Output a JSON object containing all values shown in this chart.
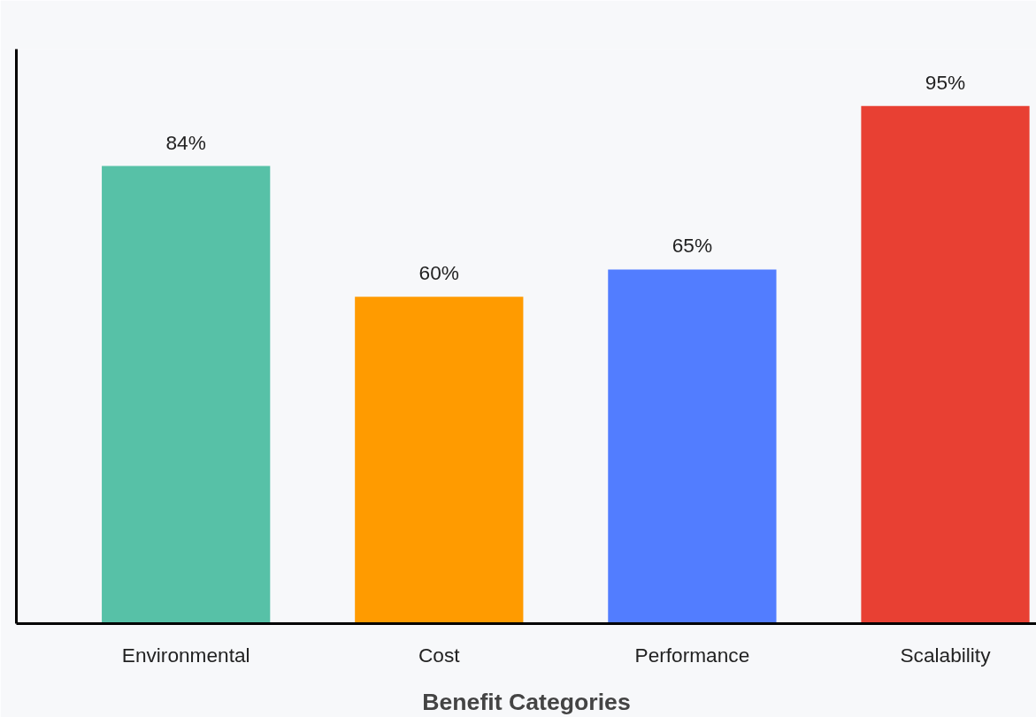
{
  "chart_data": {
    "type": "bar",
    "xlabel": "Benefit Categories",
    "categories": [
      "Environmental",
      "Cost",
      "Performance",
      "Scalability"
    ],
    "values": [
      84,
      60,
      65,
      95
    ],
    "colors": [
      "#57c1a7",
      "#ff9b00",
      "#527dff",
      "#e84033"
    ],
    "value_labels": [
      "84%",
      "60%",
      "65%",
      "95%"
    ],
    "grid": false
  }
}
